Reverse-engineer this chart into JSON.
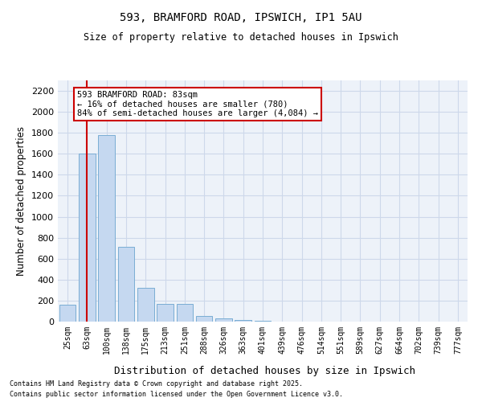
{
  "title1": "593, BRAMFORD ROAD, IPSWICH, IP1 5AU",
  "title2": "Size of property relative to detached houses in Ipswich",
  "xlabel": "Distribution of detached houses by size in Ipswich",
  "ylabel": "Number of detached properties",
  "categories": [
    "25sqm",
    "63sqm",
    "100sqm",
    "138sqm",
    "175sqm",
    "213sqm",
    "251sqm",
    "288sqm",
    "326sqm",
    "363sqm",
    "401sqm",
    "439sqm",
    "476sqm",
    "514sqm",
    "551sqm",
    "589sqm",
    "627sqm",
    "664sqm",
    "702sqm",
    "739sqm",
    "777sqm"
  ],
  "values": [
    160,
    1600,
    1780,
    710,
    320,
    170,
    170,
    55,
    30,
    15,
    10,
    0,
    0,
    0,
    0,
    0,
    0,
    0,
    0,
    0,
    0
  ],
  "bar_color": "#c5d8f0",
  "bar_edge_color": "#7aadd4",
  "vline_x": 1.0,
  "annotation_text": "593 BRAMFORD ROAD: 83sqm\n← 16% of detached houses are smaller (780)\n84% of semi-detached houses are larger (4,084) →",
  "annotation_box_color": "#ffffff",
  "annotation_box_edge": "#cc0000",
  "vline_color": "#cc0000",
  "ylim": [
    0,
    2300
  ],
  "yticks": [
    0,
    200,
    400,
    600,
    800,
    1000,
    1200,
    1400,
    1600,
    1800,
    2000,
    2200
  ],
  "grid_color": "#cdd8ea",
  "bg_color": "#edf2f9",
  "footer1": "Contains HM Land Registry data © Crown copyright and database right 2025.",
  "footer2": "Contains public sector information licensed under the Open Government Licence v3.0."
}
